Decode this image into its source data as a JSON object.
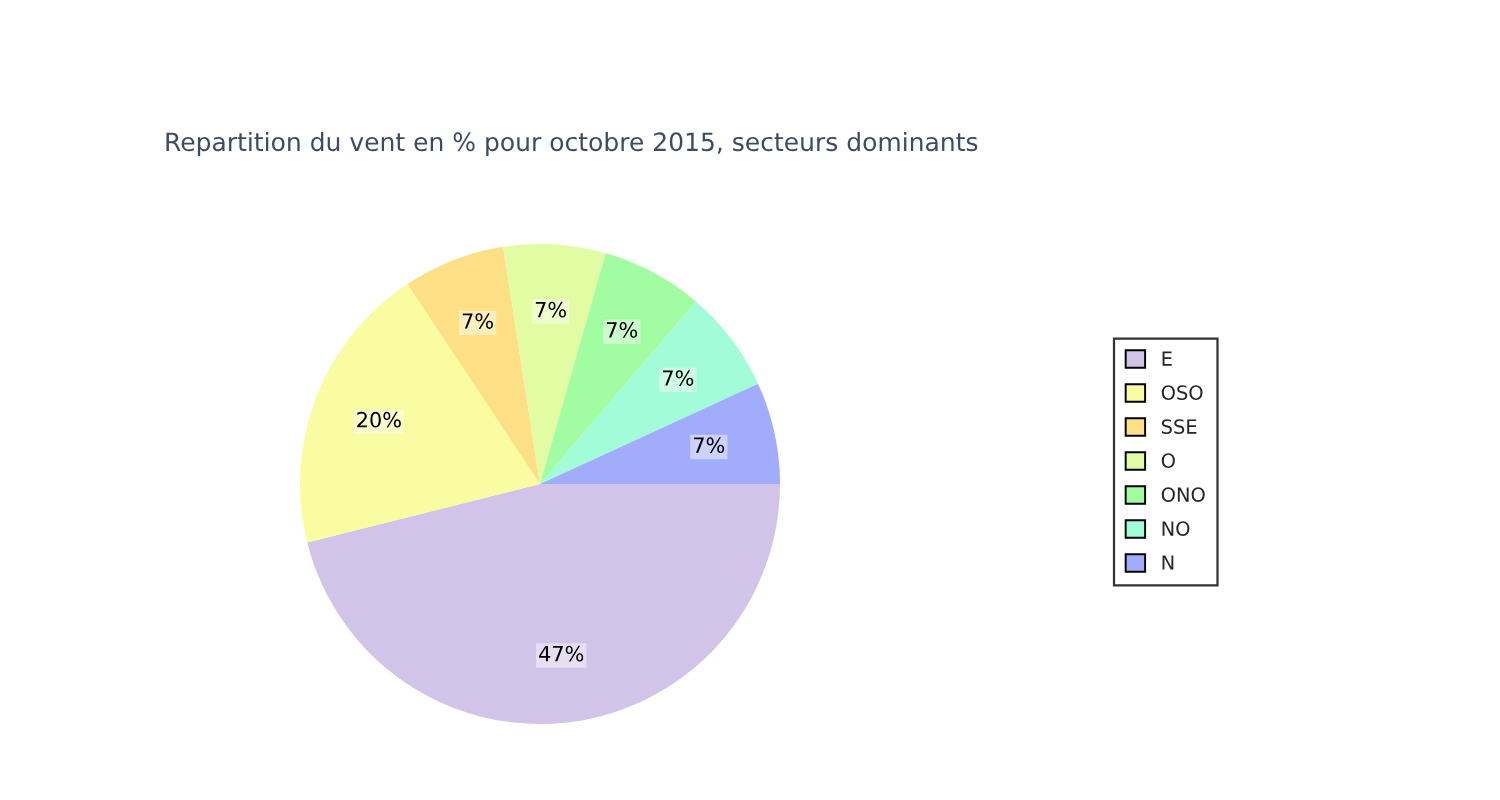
{
  "chart_data": {
    "type": "pie",
    "title": "Repartition du vent en % pour octobre 2015, secteurs dominants",
    "categories": [
      "E",
      "OSO",
      "SSE",
      "O",
      "ONO",
      "NO",
      "N"
    ],
    "values": [
      47,
      20,
      7,
      7,
      7,
      7,
      7
    ],
    "colors": [
      "#d2c3e8",
      "#fafca2",
      "#fde086",
      "#e2fca4",
      "#a2fca2",
      "#a2fcd8",
      "#a2acfc"
    ],
    "value_labels": [
      "47%",
      "20%",
      "7%",
      "7%",
      "7%",
      "7%",
      "7%"
    ],
    "legend": "right"
  }
}
